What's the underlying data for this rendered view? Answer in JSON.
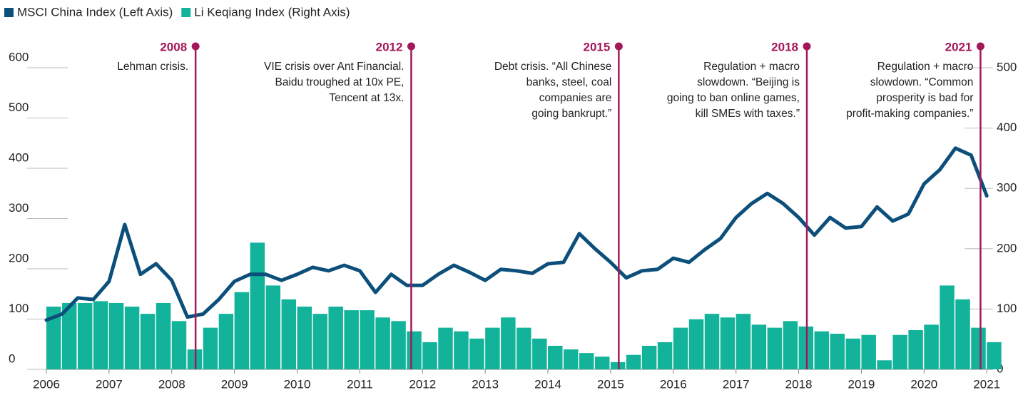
{
  "chart_data": {
    "type": "bar-line",
    "legend": "top-left",
    "x": [
      2006,
      2006.25,
      2006.5,
      2006.75,
      2007,
      2007.25,
      2007.5,
      2007.75,
      2008,
      2008.25,
      2008.5,
      2008.75,
      2009,
      2009.25,
      2009.5,
      2009.75,
      2010,
      2010.25,
      2010.5,
      2010.75,
      2011,
      2011.25,
      2011.5,
      2011.75,
      2012,
      2012.25,
      2012.5,
      2012.75,
      2013,
      2013.25,
      2013.5,
      2013.75,
      2014,
      2014.25,
      2014.5,
      2014.75,
      2015,
      2015.25,
      2015.5,
      2015.75,
      2016,
      2016.25,
      2016.5,
      2016.75,
      2017,
      2017.25,
      2017.5,
      2017.75,
      2018,
      2018.25,
      2018.5,
      2018.75,
      2019,
      2019.25,
      2019.5,
      2019.75,
      2020,
      2020.25,
      2020.5,
      2020.75,
      2021
    ],
    "series": [
      {
        "name": "MSCI China Index (Left Axis)",
        "color": "#0b4f7a",
        "kind": "line",
        "values": [
          98,
          110,
          142,
          139,
          175,
          288,
          189,
          210,
          177,
          104,
          110,
          139,
          175,
          189,
          189,
          177,
          189,
          203,
          196,
          207,
          196,
          153,
          189,
          167,
          167,
          189,
          207,
          193,
          177,
          199,
          196,
          191,
          210,
          213,
          270,
          240,
          213,
          182,
          196,
          199,
          221,
          213,
          238,
          260,
          302,
          330,
          350,
          330,
          302,
          267,
          302,
          281,
          284,
          323,
          295,
          309,
          369,
          397,
          440,
          426,
          345
        ]
      },
      {
        "name": "Li Keqiang Index (Right Axis)",
        "color": "#12b39a",
        "kind": "bar",
        "axis": "y2",
        "values": [
          104,
          110,
          110,
          113,
          110,
          104,
          92,
          110,
          80,
          33,
          69,
          92,
          128,
          210,
          139,
          116,
          104,
          92,
          104,
          98,
          98,
          86,
          80,
          63,
          45,
          69,
          63,
          51,
          69,
          86,
          69,
          51,
          39,
          33,
          27,
          21,
          12,
          24,
          39,
          45,
          69,
          83,
          92,
          86,
          92,
          74,
          69,
          80,
          71,
          63,
          59,
          51,
          57,
          15,
          57,
          65,
          74,
          139,
          116,
          69,
          45
        ]
      }
    ],
    "xlim": [
      2006,
      2021.1
    ],
    "xticks": [
      2006,
      2007,
      2008,
      2009,
      2010,
      2011,
      2012,
      2013,
      2014,
      2015,
      2016,
      2017,
      2018,
      2019,
      2020,
      2021
    ],
    "ylim": [
      0,
      600
    ],
    "yticks": [
      0,
      100,
      200,
      300,
      400,
      500,
      600
    ],
    "y2lim": [
      0,
      500
    ],
    "y2ticks": [
      0,
      100,
      200,
      300,
      400,
      500
    ],
    "annotation_color": "#a3185a",
    "annotations": [
      {
        "x": 2008.38,
        "label": "2008",
        "text": [
          "Lehman crisis."
        ]
      },
      {
        "x": 2011.82,
        "label": "2012",
        "text": [
          "VIE crisis over Ant Financial.",
          "Baidu troughed at 10x PE,",
          "Tencent at 13x."
        ]
      },
      {
        "x": 2015.13,
        "label": "2015",
        "text": [
          "Debt crisis. “All Chinese",
          "banks, steel, coal",
          "companies are",
          "going bankrupt.”"
        ]
      },
      {
        "x": 2018.13,
        "label": "2018",
        "text": [
          "Regulation + macro",
          "slowdown. “Beijing is",
          "going to ban online games,",
          "kill SMEs with taxes.”"
        ]
      },
      {
        "x": 2020.9,
        "label": "2021",
        "text": [
          "Regulation + macro",
          "slowdown. “Common",
          "prosperity is bad for",
          "profit-making companies.”"
        ]
      }
    ]
  }
}
